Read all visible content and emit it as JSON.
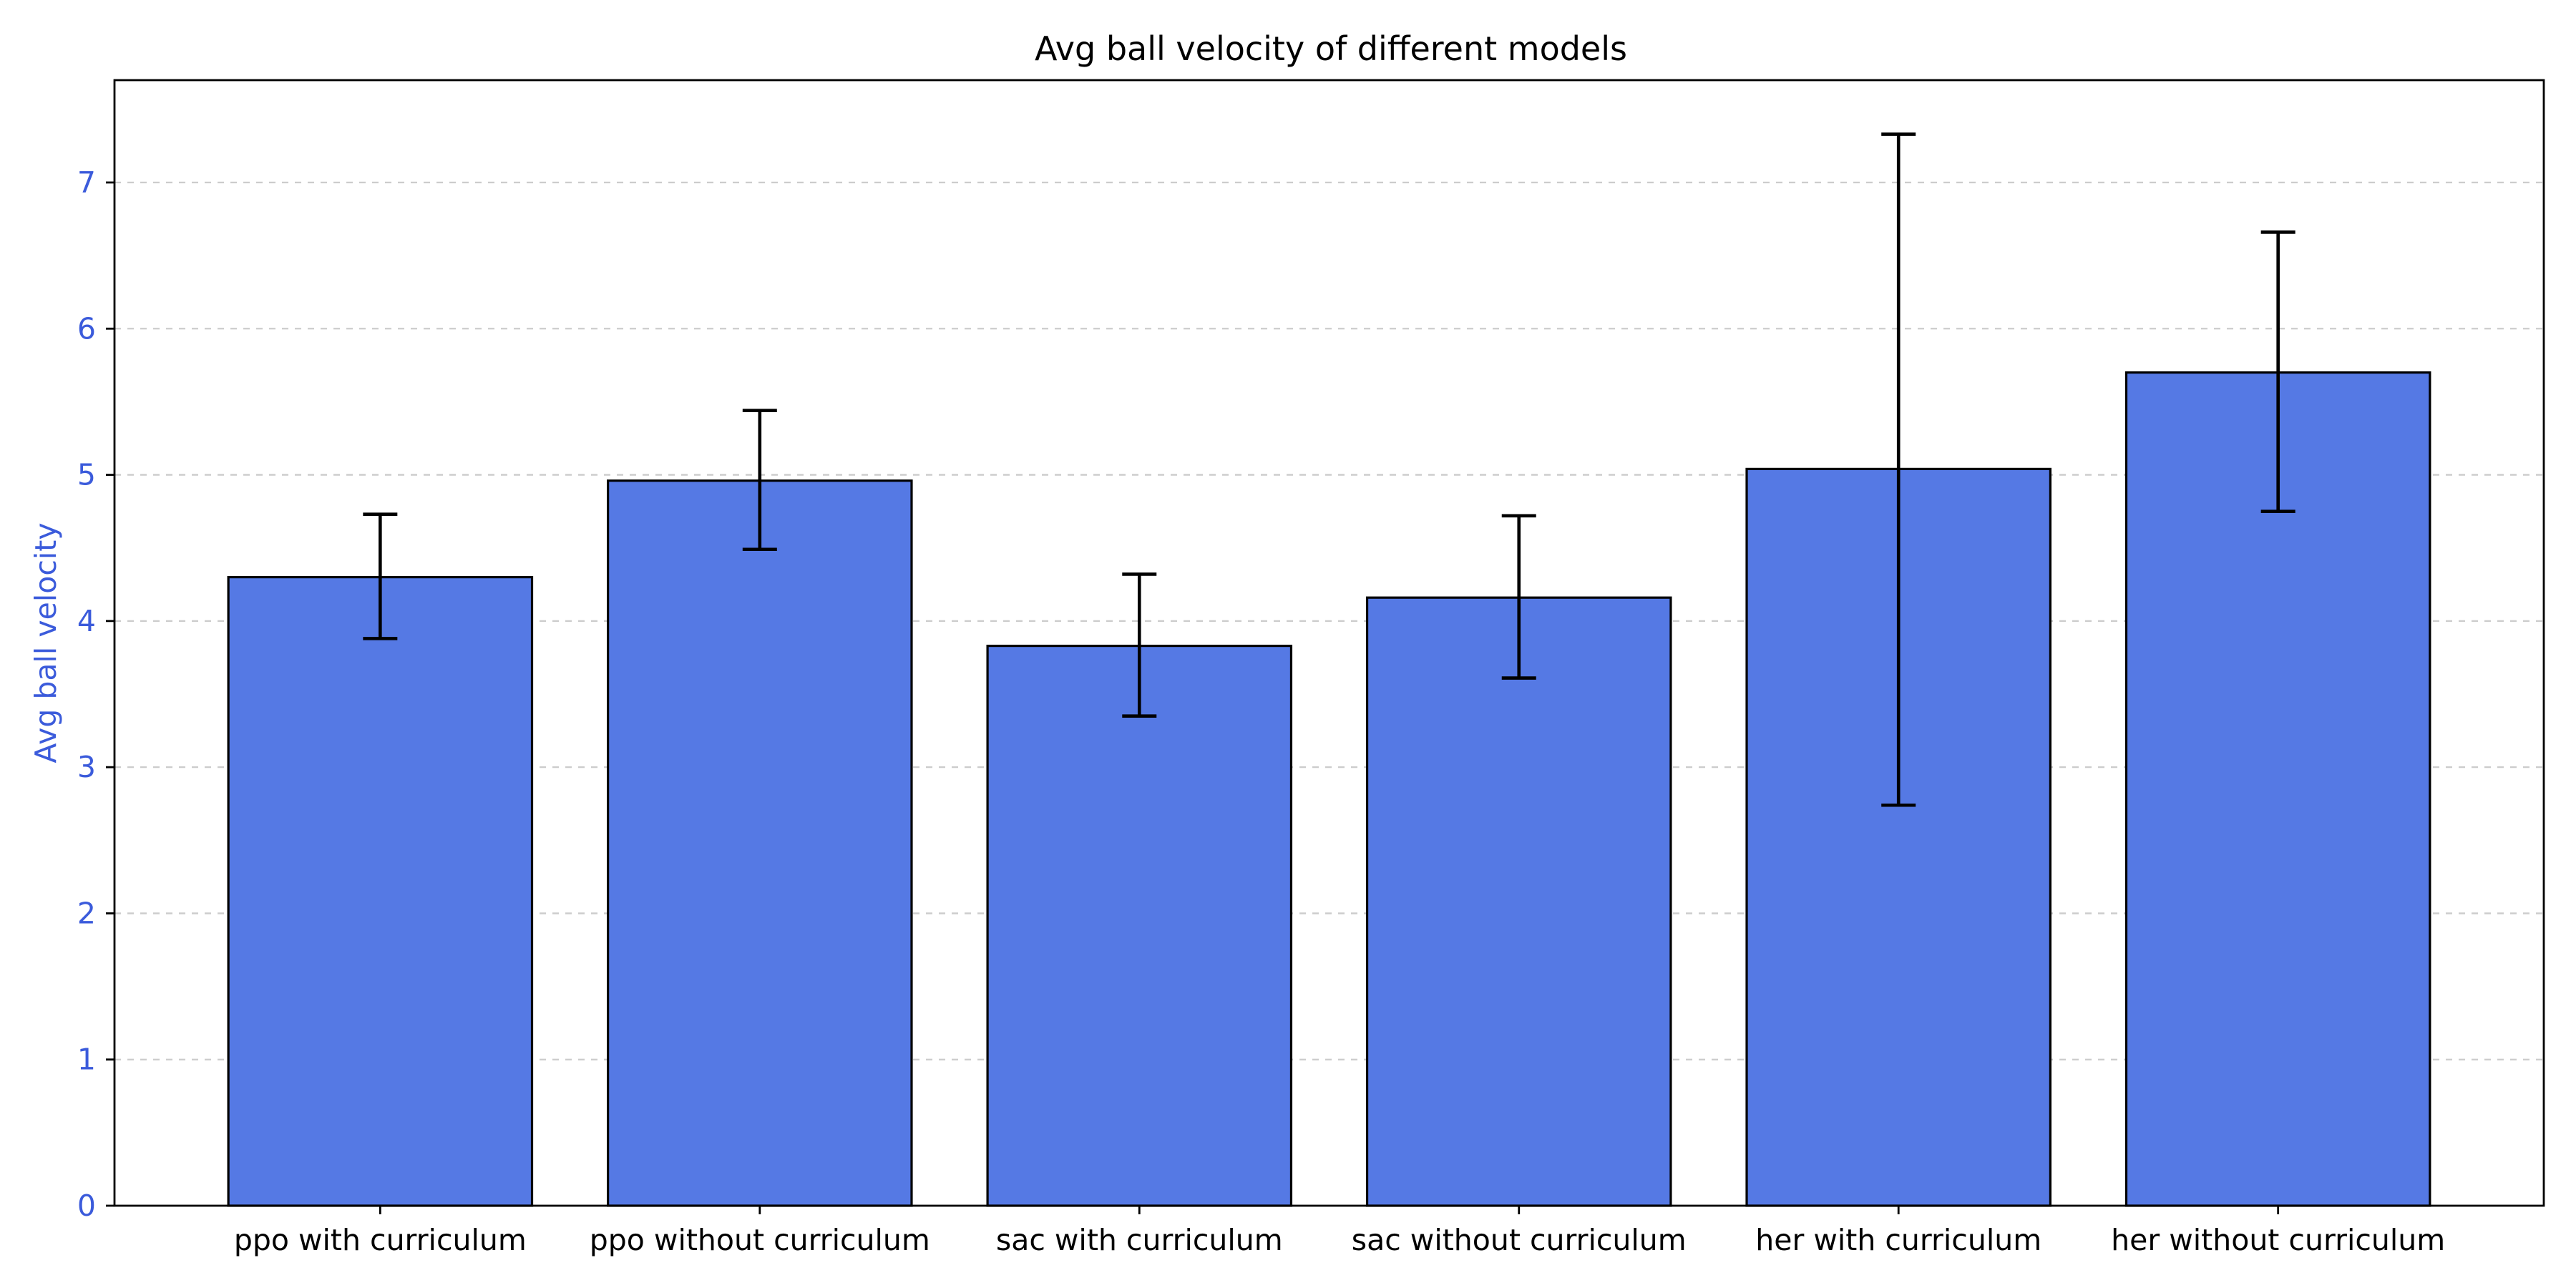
{
  "chart_data": {
    "type": "bar",
    "title": "Avg ball velocity of different models",
    "xlabel": "",
    "ylabel": "Avg ball velocity",
    "categories": [
      "ppo with curriculum",
      "ppo without curriculum",
      "sac with curriculum",
      "sac without curriculum",
      "her with curriculum",
      "her without curriculum"
    ],
    "values": [
      4.3,
      4.96,
      3.83,
      4.16,
      5.04,
      5.7
    ],
    "error_low": [
      3.88,
      4.49,
      3.35,
      3.61,
      2.74,
      4.75
    ],
    "error_high": [
      4.73,
      5.44,
      4.32,
      4.72,
      7.33,
      6.66
    ],
    "ylim": [
      0,
      7.7
    ],
    "yticks": [
      0,
      1,
      2,
      3,
      4,
      5,
      6,
      7
    ],
    "grid": "y-dashed",
    "colors": {
      "bar_fill": "#5579e4",
      "bar_edge": "#000000",
      "y_axis_text": "#3b5bdb",
      "grid": "#cccccc"
    }
  }
}
